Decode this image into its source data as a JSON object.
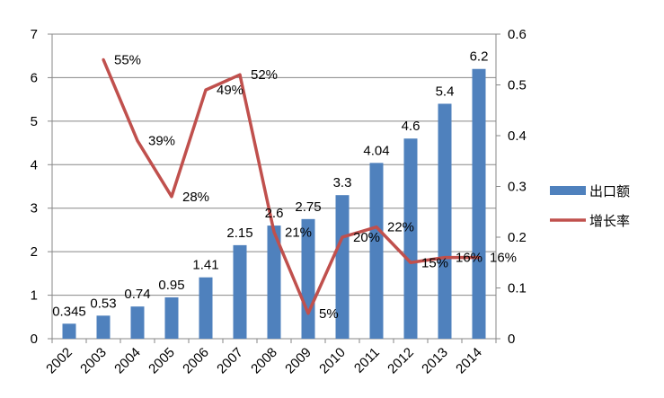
{
  "chart_data": {
    "type": "bar",
    "categories": [
      "2002",
      "2003",
      "2004",
      "2005",
      "2006",
      "2007",
      "2008",
      "2009",
      "2010",
      "2011",
      "2012",
      "2013",
      "2014"
    ],
    "series": [
      {
        "name": "出口额",
        "type": "bar",
        "axis": "left",
        "color": "#4F81BD",
        "values": [
          0.345,
          0.53,
          0.74,
          0.95,
          1.41,
          2.15,
          2.6,
          2.75,
          3.3,
          4.04,
          4.6,
          5.4,
          6.2
        ],
        "labels": [
          "0.345",
          "0.53",
          "0.74",
          "0.95",
          "1.41",
          "2.15",
          "2.6",
          "2.75",
          "3.3",
          "4.04",
          "4.6",
          "5.4",
          "6.2"
        ]
      },
      {
        "name": "增长率",
        "type": "line",
        "axis": "right",
        "color": "#C0504D",
        "values": [
          null,
          0.55,
          0.39,
          0.28,
          0.49,
          0.52,
          0.21,
          0.05,
          0.2,
          0.22,
          0.15,
          0.16,
          0.16
        ],
        "labels": [
          "",
          "55%",
          "39%",
          "28%",
          "49%",
          "52%",
          "21%",
          "5%",
          "20%",
          "22%",
          "15%",
          "16%",
          "16%"
        ]
      }
    ],
    "y_left": {
      "min": 0,
      "max": 7,
      "ticks": [
        "0",
        "1",
        "2",
        "3",
        "4",
        "5",
        "6",
        "7"
      ]
    },
    "y_right": {
      "min": 0,
      "max": 0.6,
      "ticks": [
        "0",
        "0.1",
        "0.2",
        "0.3",
        "0.4",
        "0.5",
        "0.6"
      ]
    },
    "title": "",
    "xlabel": "",
    "ylabel": "",
    "grid": true,
    "legend": "right"
  }
}
